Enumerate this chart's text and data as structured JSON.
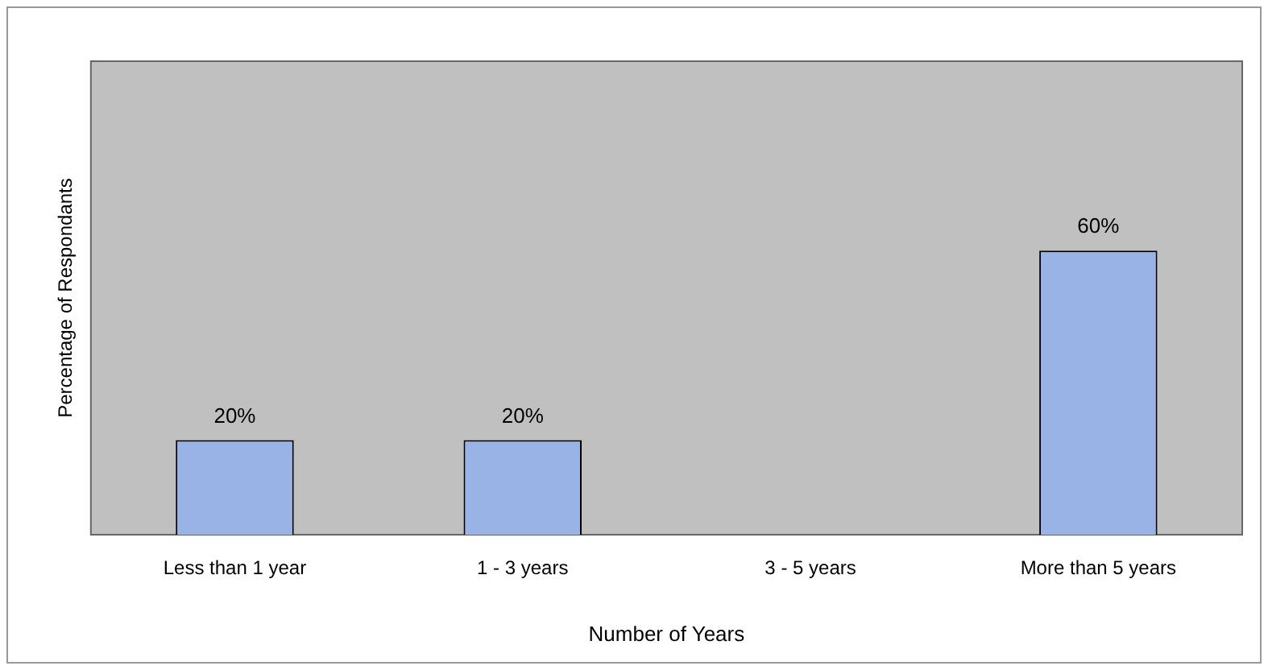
{
  "chart_data": {
    "type": "bar",
    "xlabel": "Number of Years",
    "ylabel": "Percentage of Respondants",
    "categories": [
      "Less than 1 year",
      "1 - 3 years",
      "3 - 5 years",
      "More than 5 years"
    ],
    "values": [
      20,
      20,
      0,
      60
    ],
    "value_labels": [
      "20%",
      "20%",
      null,
      "60%"
    ],
    "color": "#99b3e6",
    "ylim": [
      0,
      100
    ],
    "tick_labels": "x",
    "grid": false,
    "legend": false
  }
}
